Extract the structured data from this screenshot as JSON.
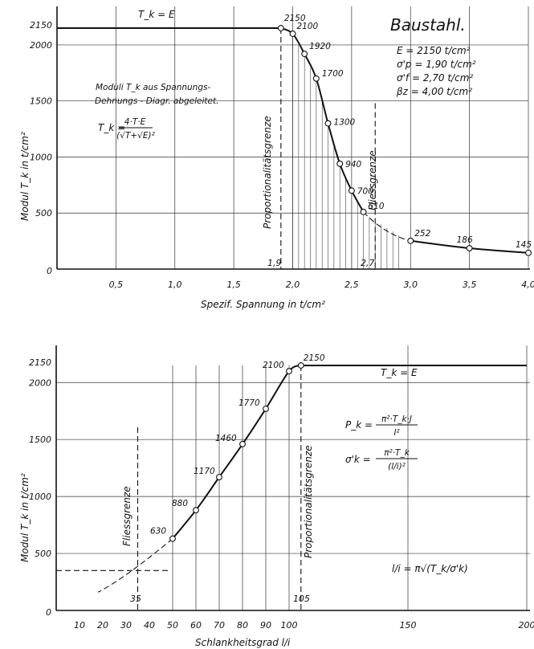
{
  "chart_data": [
    {
      "type": "line",
      "title": "Baustahl.",
      "xlabel": "Spezif. Spannung in t/cm²",
      "ylabel": "Modul T_k in t/cm²",
      "xlim": [
        0,
        4.0
      ],
      "ylim": [
        0,
        2150
      ],
      "x_ticks": [
        "0,5",
        "1,0",
        "1,5",
        "2,0",
        "2,5",
        "3,0",
        "3,5",
        "4,0"
      ],
      "y_ticks": [
        "0",
        "500",
        "1000",
        "1500",
        "2000",
        "2150"
      ],
      "grid": true,
      "series": [
        {
          "name": "T_k = E",
          "x": [
            0,
            0.5,
            1.0,
            1.5,
            1.9
          ],
          "y": [
            2150,
            2150,
            2150,
            2150,
            2150
          ]
        },
        {
          "name": "",
          "x": [
            1.9,
            2.0,
            2.1,
            2.2,
            2.3,
            2.4,
            2.5,
            2.6,
            3.0,
            3.5,
            4.0
          ],
          "y": [
            2150,
            2100,
            1920,
            1700,
            1300,
            940,
            700,
            510,
            252,
            186,
            145
          ],
          "point_labels": [
            "2150",
            "2100",
            "1920",
            "1700",
            "1300",
            "940",
            "700",
            "510",
            "252",
            "186",
            "145"
          ]
        }
      ],
      "annotations": {
        "top_label": "T_k = E",
        "prop_label": "Proportionalitätsgrenze",
        "prop_value": "1,9",
        "fliess_label": "Fliessgrenze",
        "fliess_value": "2,7",
        "note1": "Moduli T_k aus Spannungs-",
        "note2": "Dehnungs - Diagr. abgeleitet.",
        "formula_lhs": "T_k =",
        "formula_num": "4·T·E",
        "formula_den": "(√T+√E)²",
        "params": [
          "E = 2150 t/cm²",
          "σ'p = 1,90 t/cm²",
          "σ'f = 2,70 t/cm²",
          "βz = 4,00 t/cm²"
        ]
      }
    },
    {
      "type": "line",
      "xlabel": "Schlankheitsgrad l/i",
      "ylabel": "Modul T_k in t/cm²",
      "xlim": [
        0,
        200
      ],
      "ylim": [
        0,
        2150
      ],
      "x_ticks": [
        "10",
        "20",
        "30",
        "40",
        "50",
        "60",
        "70",
        "80",
        "90",
        "100",
        "150",
        "200"
      ],
      "y_ticks": [
        "0",
        "500",
        "1000",
        "1500",
        "2000",
        "2150"
      ],
      "grid": true,
      "series": [
        {
          "name": "",
          "x": [
            50,
            60,
            70,
            80,
            90,
            100,
            105,
            200
          ],
          "y": [
            630,
            880,
            1170,
            1460,
            1770,
            2100,
            2150,
            2150
          ],
          "point_labels": [
            "630",
            "880",
            "1170",
            "1460",
            "1770",
            "2100",
            "2150",
            ""
          ]
        }
      ],
      "annotations": {
        "top_label": "T_k = E",
        "prop_label": "Proportionalitätsgrenze",
        "prop_value": "105",
        "fliess_label": "Fliessgrenze",
        "fliess_value": "35",
        "eq1_lhs": "P_k =",
        "eq1_num": "π²·T_k·J",
        "eq1_den": "l²",
        "eq2_lhs": "σ'k =",
        "eq2_num": "π²·T_k",
        "eq2_den": "(l/i)²",
        "eq3": "l/i = π√(T_k/σ'k)"
      }
    }
  ]
}
